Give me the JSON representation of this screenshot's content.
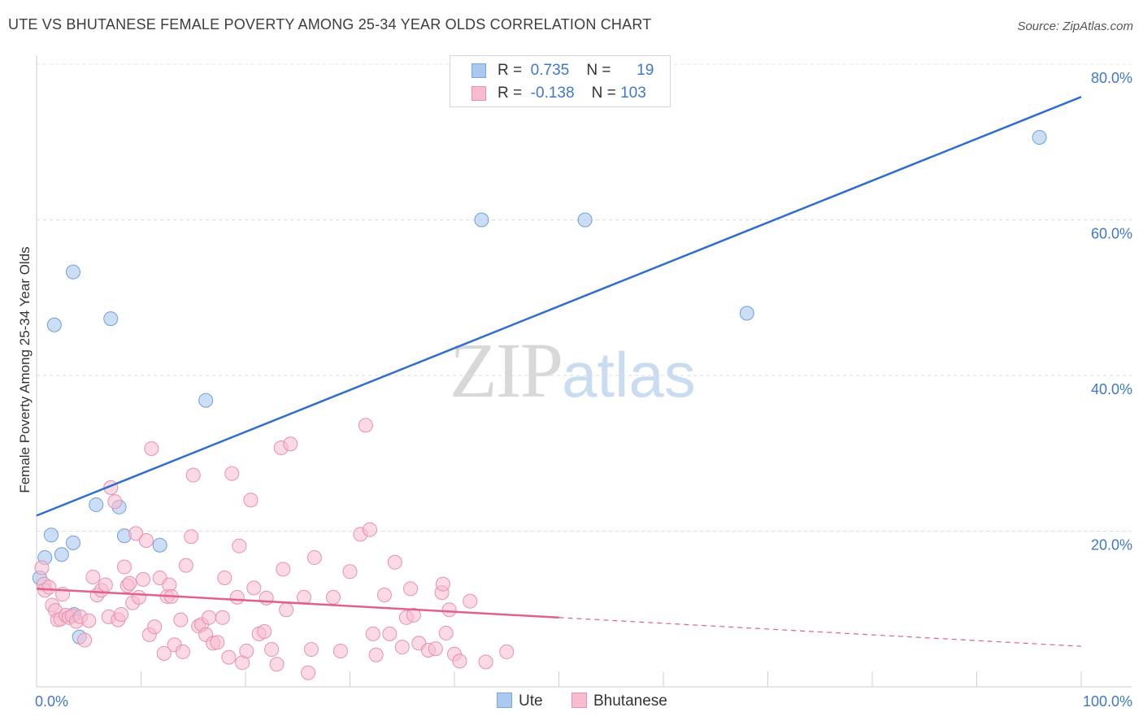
{
  "header": {
    "title": "UTE VS BHUTANESE FEMALE POVERTY AMONG 25-34 YEAR OLDS CORRELATION CHART",
    "source": "Source: ZipAtlas.com"
  },
  "watermark": {
    "zip": "ZIP",
    "atlas": "atlas"
  },
  "legend": {
    "rows": [
      {
        "r_label": "R =",
        "r_value": "0.735",
        "n_label": "N =",
        "n_value": "19",
        "color": "#aac8f0",
        "border": "#7aa6e0"
      },
      {
        "r_label": "R =",
        "r_value": "-0.138",
        "n_label": "N =",
        "n_value": "103",
        "color": "#f7bcd0",
        "border": "#e890ae"
      }
    ],
    "bottom": [
      {
        "label": "Ute",
        "color": "#aac8f0",
        "border": "#7aa6e0"
      },
      {
        "label": "Bhutanese",
        "color": "#f7bcd0",
        "border": "#e890ae"
      }
    ]
  },
  "chart_data": {
    "type": "scatter",
    "title": "UTE VS BHUTANESE FEMALE POVERTY AMONG 25-34 YEAR OLDS CORRELATION CHART",
    "xlabel": "",
    "ylabel": "Female Poverty Among 25-34 Year Olds",
    "xlim": [
      0,
      100
    ],
    "ylim": [
      0,
      80
    ],
    "x_ticks": [
      {
        "value": 0,
        "label": "0.0%"
      },
      {
        "value": 100,
        "label": "100.0%"
      }
    ],
    "y_ticks": [
      {
        "value": 20,
        "label": "20.0%"
      },
      {
        "value": 40,
        "label": "40.0%"
      },
      {
        "value": 60,
        "label": "60.0%"
      },
      {
        "value": 80,
        "label": "80.0%"
      }
    ],
    "colors": {
      "ute_fill": "#aac8f0",
      "ute_stroke": "#6f9fdc",
      "ute_line": "#2f6fcc",
      "bhu_fill": "#f7bcd0",
      "bhu_stroke": "#e890ae",
      "bhu_line": "#e0608e"
    },
    "series": [
      {
        "name": "Ute",
        "points": [
          [
            0.3,
            14.0
          ],
          [
            0.8,
            16.6
          ],
          [
            1.4,
            19.5
          ],
          [
            1.7,
            46.5
          ],
          [
            2.4,
            17.0
          ],
          [
            3.5,
            18.5
          ],
          [
            3.6,
            9.3
          ],
          [
            3.5,
            53.3
          ],
          [
            4.1,
            6.4
          ],
          [
            5.7,
            23.4
          ],
          [
            7.1,
            47.3
          ],
          [
            7.9,
            23.1
          ],
          [
            8.4,
            19.4
          ],
          [
            11.8,
            18.2
          ],
          [
            16.2,
            36.8
          ],
          [
            42.6,
            60.0
          ],
          [
            52.5,
            60.0
          ],
          [
            68.0,
            48.0
          ],
          [
            96.0,
            70.6
          ]
        ],
        "trend": {
          "x": [
            0,
            100
          ],
          "y": [
            22.0,
            75.8
          ]
        }
      },
      {
        "name": "Bhutanese",
        "points": [
          [
            0.5,
            15.3
          ],
          [
            0.7,
            13.2
          ],
          [
            0.8,
            12.4
          ],
          [
            1.2,
            12.8
          ],
          [
            1.5,
            10.5
          ],
          [
            1.8,
            9.8
          ],
          [
            2.0,
            8.6
          ],
          [
            2.3,
            8.7
          ],
          [
            2.5,
            11.9
          ],
          [
            2.8,
            9.2
          ],
          [
            3.1,
            8.9
          ],
          [
            3.4,
            9.1
          ],
          [
            3.8,
            8.4
          ],
          [
            4.2,
            9.0
          ],
          [
            4.6,
            6.0
          ],
          [
            5.0,
            8.5
          ],
          [
            5.4,
            14.1
          ],
          [
            5.8,
            11.8
          ],
          [
            6.2,
            12.4
          ],
          [
            6.6,
            13.1
          ],
          [
            6.9,
            9.0
          ],
          [
            7.1,
            25.6
          ],
          [
            7.5,
            23.8
          ],
          [
            7.8,
            8.6
          ],
          [
            8.1,
            9.3
          ],
          [
            8.4,
            15.4
          ],
          [
            8.7,
            13.0
          ],
          [
            8.9,
            13.3
          ],
          [
            9.2,
            10.8
          ],
          [
            9.5,
            19.7
          ],
          [
            9.8,
            11.5
          ],
          [
            10.2,
            13.8
          ],
          [
            10.5,
            18.8
          ],
          [
            10.8,
            6.7
          ],
          [
            11.0,
            30.6
          ],
          [
            11.3,
            7.7
          ],
          [
            11.8,
            14.0
          ],
          [
            12.2,
            4.3
          ],
          [
            12.5,
            11.6
          ],
          [
            12.7,
            13.1
          ],
          [
            12.9,
            11.6
          ],
          [
            13.2,
            5.4
          ],
          [
            13.8,
            8.6
          ],
          [
            14.0,
            4.5
          ],
          [
            14.3,
            15.6
          ],
          [
            14.8,
            19.3
          ],
          [
            15.0,
            27.2
          ],
          [
            15.5,
            7.8
          ],
          [
            15.8,
            8.0
          ],
          [
            16.2,
            6.7
          ],
          [
            16.5,
            8.9
          ],
          [
            16.9,
            5.6
          ],
          [
            17.3,
            5.7
          ],
          [
            17.8,
            8.9
          ],
          [
            18.0,
            14.0
          ],
          [
            18.4,
            3.8
          ],
          [
            18.7,
            27.4
          ],
          [
            19.2,
            11.5
          ],
          [
            19.4,
            18.1
          ],
          [
            19.7,
            3.1
          ],
          [
            20.1,
            4.6
          ],
          [
            20.5,
            24.0
          ],
          [
            20.8,
            12.7
          ],
          [
            21.3,
            6.8
          ],
          [
            21.8,
            7.1
          ],
          [
            22.0,
            11.4
          ],
          [
            22.5,
            4.8
          ],
          [
            23.0,
            2.9
          ],
          [
            23.4,
            30.7
          ],
          [
            23.6,
            15.1
          ],
          [
            23.9,
            9.9
          ],
          [
            24.3,
            31.2
          ],
          [
            25.6,
            11.5
          ],
          [
            26.0,
            1.8
          ],
          [
            26.3,
            4.8
          ],
          [
            26.6,
            16.6
          ],
          [
            28.4,
            11.5
          ],
          [
            29.1,
            4.6
          ],
          [
            30.0,
            14.8
          ],
          [
            31.0,
            19.6
          ],
          [
            31.5,
            33.6
          ],
          [
            31.9,
            20.2
          ],
          [
            32.2,
            6.8
          ],
          [
            32.5,
            4.1
          ],
          [
            33.3,
            11.8
          ],
          [
            33.8,
            6.8
          ],
          [
            34.3,
            16.0
          ],
          [
            35.0,
            5.1
          ],
          [
            35.4,
            8.9
          ],
          [
            35.8,
            12.6
          ],
          [
            36.1,
            9.2
          ],
          [
            36.6,
            5.6
          ],
          [
            37.5,
            4.7
          ],
          [
            38.2,
            4.9
          ],
          [
            38.8,
            12.1
          ],
          [
            39.2,
            6.9
          ],
          [
            39.5,
            9.9
          ],
          [
            40.0,
            4.2
          ],
          [
            40.5,
            3.3
          ],
          [
            41.5,
            11.0
          ],
          [
            43.0,
            3.2
          ],
          [
            45.0,
            4.5
          ],
          [
            38.9,
            13.2
          ]
        ],
        "trend": {
          "x": [
            0,
            50
          ],
          "y": [
            12.6,
            8.9
          ]
        },
        "trend_extension": {
          "x": [
            50,
            100
          ],
          "y": [
            8.9,
            5.2
          ]
        }
      }
    ]
  }
}
